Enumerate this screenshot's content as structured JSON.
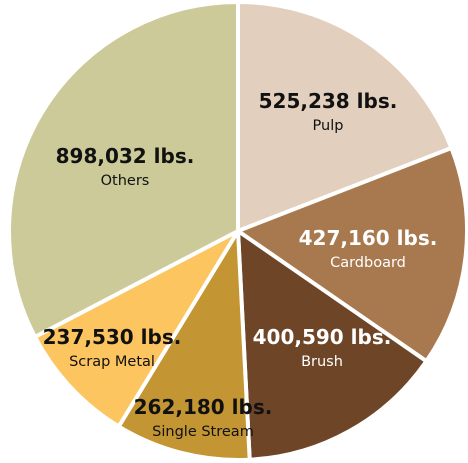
{
  "chart_data": {
    "type": "pie",
    "start_angle_deg": 0,
    "direction": "clockwise",
    "slices": [
      {
        "name": "Pulp",
        "value": 525238,
        "value_label": "525,238 lbs.",
        "color": "#e3cfbe"
      },
      {
        "name": "Cardboard",
        "value": 427160,
        "value_label": "427,160 lbs.",
        "color": "#a8784e"
      },
      {
        "name": "Brush",
        "value": 400590,
        "value_label": "400,590 lbs.",
        "color": "#6e4627"
      },
      {
        "name": "Single Stream",
        "value": 262180,
        "value_label": "262,180 lbs.",
        "color": "#c39533"
      },
      {
        "name": "Scrap Metal",
        "value": 237530,
        "value_label": "237,530 lbs.",
        "color": "#fcc560"
      },
      {
        "name": "Others",
        "value": 898032,
        "value_label": "898,032 lbs.",
        "color": "#cbca98"
      }
    ]
  }
}
